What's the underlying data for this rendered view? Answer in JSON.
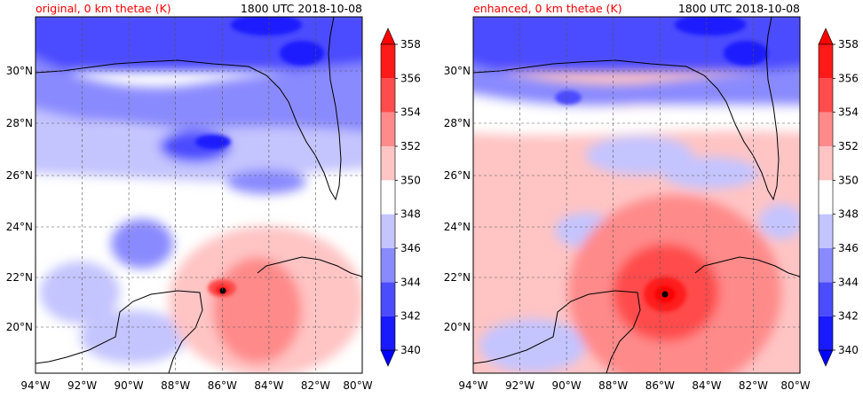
{
  "panels": [
    {
      "id": "original",
      "title_left": "original, 0 km thetae (K)",
      "title_right": "1800 UTC 2018-10-08",
      "enhanced": false
    },
    {
      "id": "enhanced",
      "title_left": "enhanced, 0 km thetae (K)",
      "title_right": "1800 UTC 2018-10-08",
      "enhanced": true
    }
  ],
  "lon_ticks": [
    "94°W",
    "92°W",
    "90°W",
    "88°W",
    "86°W",
    "84°W",
    "82°W",
    "80°W"
  ],
  "lat_ticks": [
    "20°N",
    "22°N",
    "24°N",
    "26°N",
    "28°N",
    "30°N"
  ],
  "colorbar": {
    "tick_labels": [
      "340",
      "342",
      "344",
      "346",
      "348",
      "350",
      "352",
      "354",
      "356",
      "358"
    ],
    "levels": [
      340,
      342,
      344,
      346,
      348,
      350,
      352,
      354,
      356,
      358
    ],
    "colors": [
      "#1a1aff",
      "#4c4cff",
      "#8a8aff",
      "#c4c4ff",
      "#ffffff",
      "#ffc4c4",
      "#ff8a8a",
      "#ff4c4c",
      "#ff1a1a"
    ],
    "under_color": "#0000ff",
    "over_color": "#ff0000"
  },
  "colors": {
    "title_left": "#ff0000",
    "coast": "#000000",
    "grid": "#555555"
  }
}
